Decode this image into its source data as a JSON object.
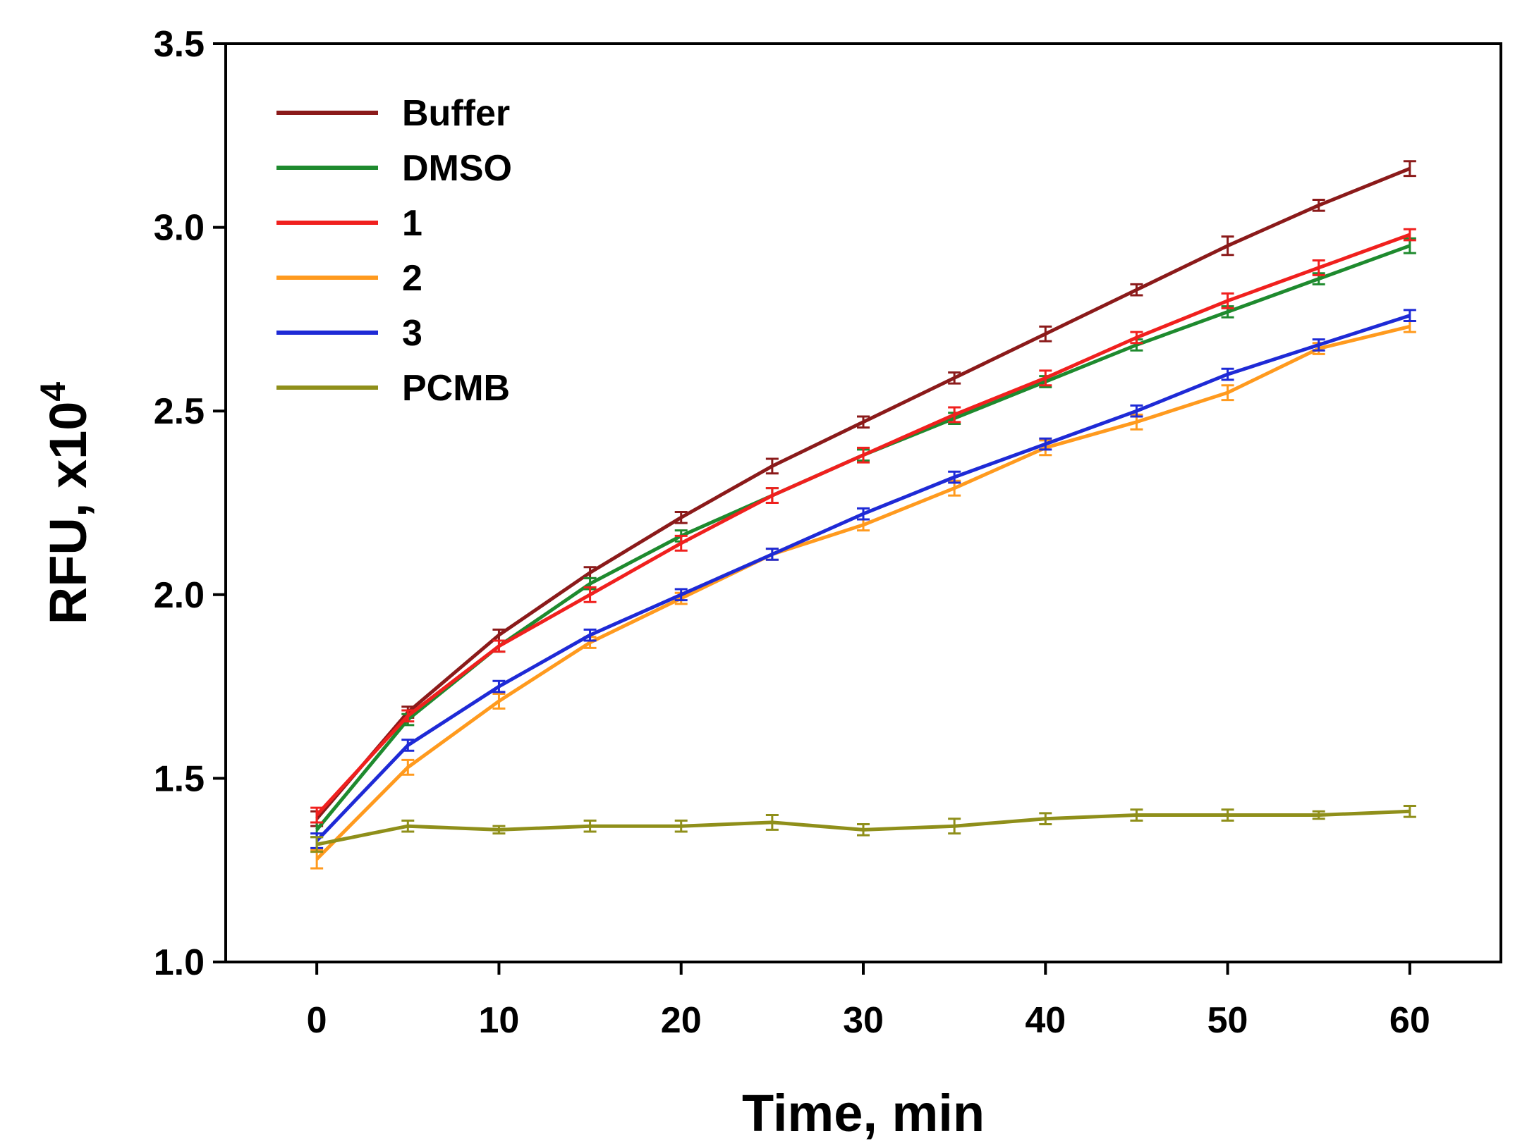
{
  "chart_data": {
    "type": "line",
    "title": "",
    "xlabel": "Time, min",
    "ylabel": "RFU, x10",
    "ylabel_superscript": "4",
    "xlim": [
      -5,
      65
    ],
    "ylim": [
      1.0,
      3.5
    ],
    "xticks": [
      0,
      10,
      20,
      30,
      40,
      50,
      60
    ],
    "xtick_labels": [
      "0",
      "10",
      "20",
      "30",
      "40",
      "50",
      "60"
    ],
    "yticks": [
      1.0,
      1.5,
      2.0,
      2.5,
      3.0,
      3.5
    ],
    "ytick_labels": [
      "1.0",
      "1.5",
      "2.0",
      "2.5",
      "3.0",
      "3.5"
    ],
    "grid": false,
    "legend_position": "top-left",
    "x": [
      0,
      5,
      10,
      15,
      20,
      25,
      30,
      35,
      40,
      45,
      50,
      55,
      60
    ],
    "series": [
      {
        "name": "Buffer",
        "color": "#8b1a1a",
        "values": [
          1.39,
          1.68,
          1.89,
          2.06,
          2.21,
          2.35,
          2.47,
          2.59,
          2.71,
          2.83,
          2.95,
          3.06,
          3.16
        ],
        "errors": [
          0.02,
          0.015,
          0.015,
          0.015,
          0.015,
          0.02,
          0.015,
          0.015,
          0.02,
          0.015,
          0.025,
          0.015,
          0.02
        ]
      },
      {
        "name": "DMSO",
        "color": "#1e8a2e",
        "values": [
          1.36,
          1.66,
          1.86,
          2.03,
          2.16,
          2.27,
          2.38,
          2.48,
          2.58,
          2.68,
          2.77,
          2.86,
          2.95
        ],
        "errors": [
          0.02,
          0.015,
          0.015,
          0.015,
          0.015,
          0.02,
          0.015,
          0.015,
          0.015,
          0.015,
          0.015,
          0.015,
          0.02
        ]
      },
      {
        "name": "1",
        "color": "#f0201e",
        "values": [
          1.4,
          1.67,
          1.86,
          2.0,
          2.14,
          2.27,
          2.38,
          2.49,
          2.59,
          2.7,
          2.8,
          2.89,
          2.98
        ],
        "errors": [
          0.02,
          0.015,
          0.015,
          0.02,
          0.02,
          0.02,
          0.02,
          0.02,
          0.02,
          0.015,
          0.02,
          0.02,
          0.015
        ]
      },
      {
        "name": "2",
        "color": "#ff9a1e",
        "values": [
          1.28,
          1.53,
          1.71,
          1.87,
          1.99,
          2.11,
          2.19,
          2.29,
          2.4,
          2.47,
          2.55,
          2.67,
          2.73
        ],
        "errors": [
          0.025,
          0.02,
          0.02,
          0.015,
          0.015,
          0.015,
          0.015,
          0.02,
          0.02,
          0.02,
          0.02,
          0.015,
          0.015
        ]
      },
      {
        "name": "3",
        "color": "#1e2ad6",
        "values": [
          1.33,
          1.59,
          1.75,
          1.89,
          2.0,
          2.11,
          2.22,
          2.32,
          2.41,
          2.5,
          2.6,
          2.68,
          2.76
        ],
        "errors": [
          0.02,
          0.015,
          0.015,
          0.015,
          0.015,
          0.015,
          0.015,
          0.015,
          0.015,
          0.015,
          0.015,
          0.015,
          0.015
        ]
      },
      {
        "name": "PCMB",
        "color": "#8f8f1a",
        "values": [
          1.32,
          1.37,
          1.36,
          1.37,
          1.37,
          1.38,
          1.36,
          1.37,
          1.39,
          1.4,
          1.4,
          1.4,
          1.41
        ],
        "errors": [
          0.02,
          0.015,
          0.01,
          0.015,
          0.015,
          0.02,
          0.015,
          0.02,
          0.015,
          0.015,
          0.015,
          0.01,
          0.015
        ]
      }
    ]
  }
}
